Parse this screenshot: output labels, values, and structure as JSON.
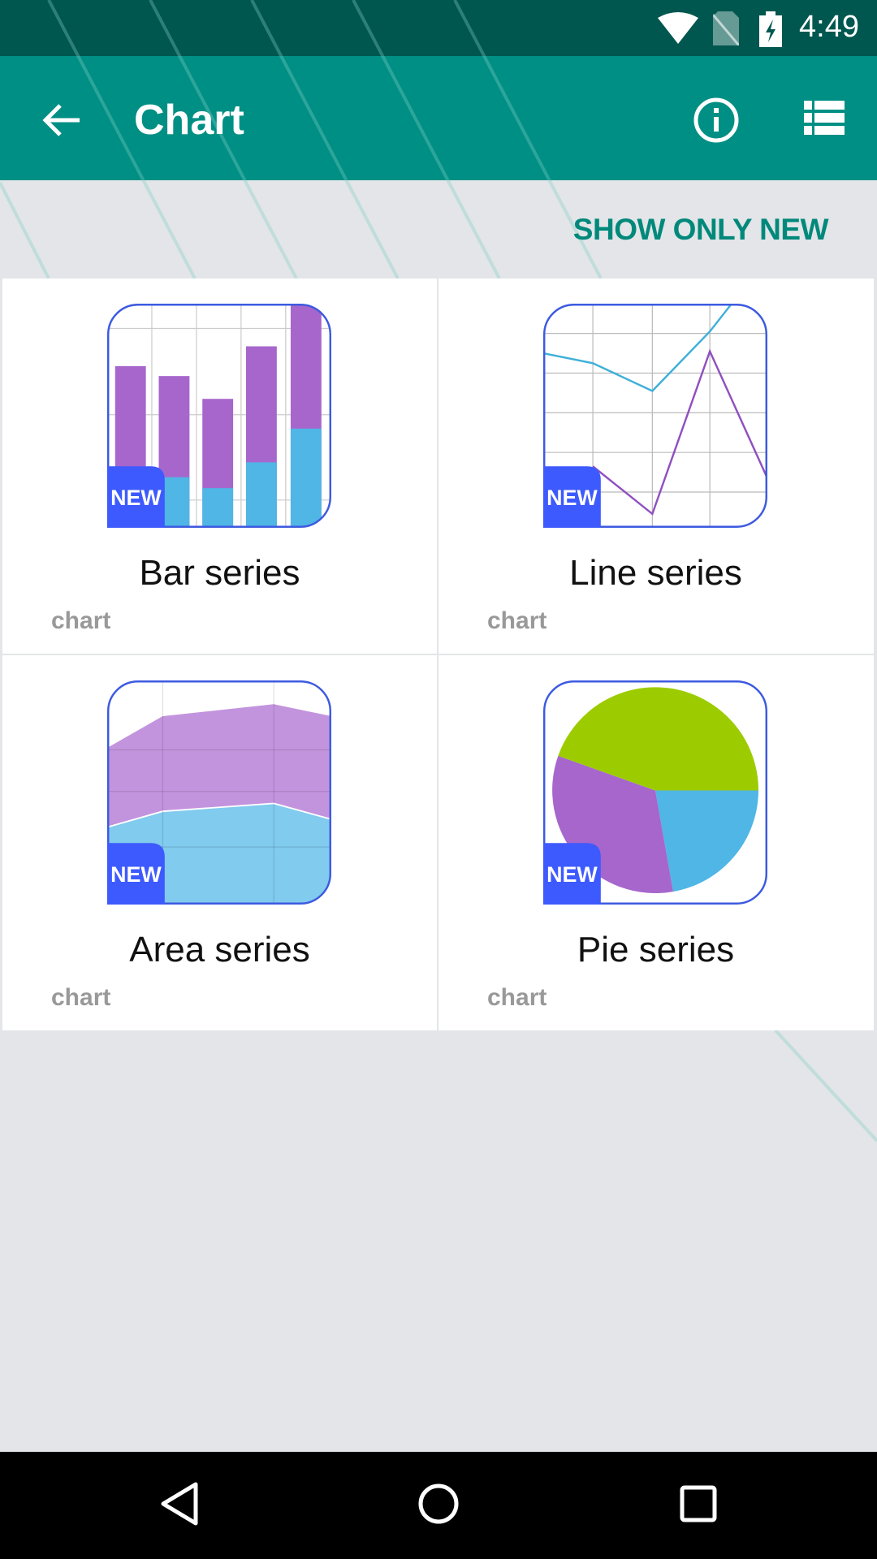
{
  "status_bar": {
    "time": "4:49",
    "icons": [
      "wifi-icon",
      "no-sim-icon",
      "battery-charging-icon"
    ]
  },
  "app_bar": {
    "title": "Chart",
    "back_icon": "arrow-left-icon",
    "actions": [
      "info-icon",
      "view-list-icon"
    ]
  },
  "filter": {
    "show_only_new_label": "SHOW ONLY NEW"
  },
  "colors": {
    "status_bar": "#00574f",
    "app_bar": "#008f84",
    "accent": "#00897b",
    "badge": "#3d5afe",
    "purple": "#a666cc",
    "blue": "#4fb6e6",
    "green": "#9ccc00"
  },
  "cards": [
    {
      "title": "Bar series",
      "category": "chart",
      "badge": "NEW"
    },
    {
      "title": "Line series",
      "category": "chart",
      "badge": "NEW"
    },
    {
      "title": "Area series",
      "category": "chart",
      "badge": "NEW"
    },
    {
      "title": "Pie series",
      "category": "chart",
      "badge": "NEW"
    }
  ],
  "nav_bar": {
    "icons": [
      "back-triangle-icon",
      "home-circle-icon",
      "recents-square-icon"
    ]
  }
}
